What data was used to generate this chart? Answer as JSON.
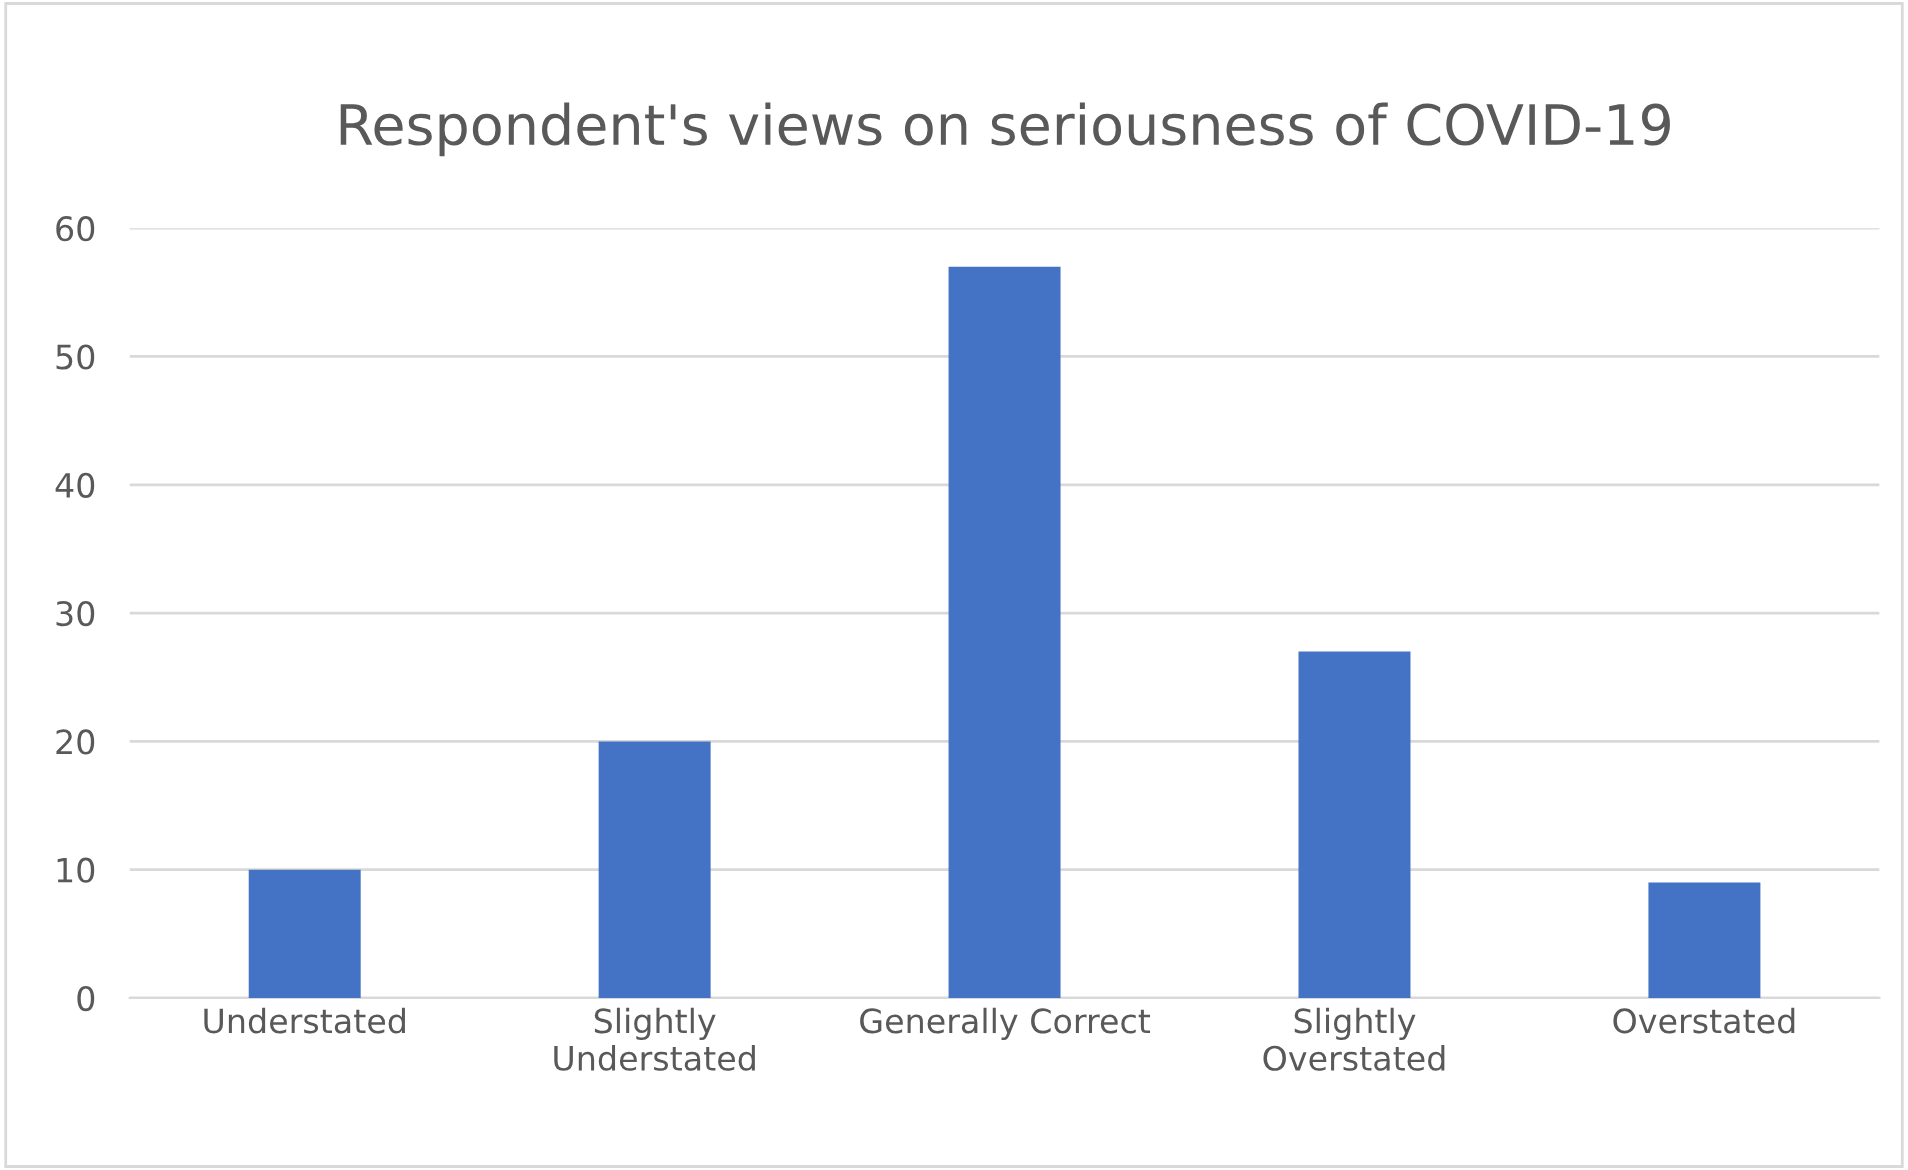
{
  "chart_data": {
    "type": "bar",
    "title": "Respondent's views on seriousness of COVID-19",
    "categories": [
      "Understated",
      "Slightly\nUnderstated",
      "Generally Correct",
      "Slightly\nOverstated",
      "Overstated"
    ],
    "values": [
      10,
      20,
      57,
      27,
      9
    ],
    "color": "#4472c4",
    "ylim": [
      0,
      60
    ],
    "yticks": [
      0,
      10,
      20,
      30,
      40,
      50,
      60
    ],
    "grid": "y"
  }
}
